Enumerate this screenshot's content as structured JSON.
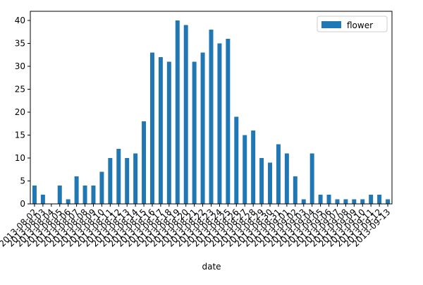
{
  "chart_data": {
    "type": "bar",
    "xlabel": "date",
    "categories": [
      "2013-08-02",
      "2013-08-03",
      "2013-08-04",
      "2013-08-05",
      "2013-08-06",
      "2013-08-07",
      "2013-08-08",
      "2013-08-09",
      "2013-08-10",
      "2013-08-11",
      "2013-08-12",
      "2013-08-13",
      "2013-08-14",
      "2013-08-15",
      "2013-08-16",
      "2013-08-17",
      "2013-08-18",
      "2013-08-19",
      "2013-08-20",
      "2013-08-21",
      "2013-08-22",
      "2013-08-23",
      "2013-08-24",
      "2013-08-25",
      "2013-08-26",
      "2013-08-27",
      "2013-08-28",
      "2013-08-29",
      "2013-08-30",
      "2013-08-31",
      "2013-09-01",
      "2013-09-02",
      "2013-09-03",
      "2013-09-04",
      "2013-09-05",
      "2013-09-06",
      "2013-09-07",
      "2013-09-08",
      "2013-09-09",
      "2013-09-10",
      "2013-09-11",
      "2013-09-12",
      "2013-09-13"
    ],
    "series": [
      {
        "name": "flower",
        "color": "#1f77b4",
        "values": [
          4,
          2,
          0,
          4,
          1,
          6,
          4,
          4,
          7,
          10,
          12,
          10,
          11,
          18,
          33,
          32,
          31,
          40,
          39,
          31,
          33,
          38,
          35,
          36,
          19,
          15,
          16,
          10,
          9,
          13,
          11,
          6,
          1,
          11,
          2,
          2,
          1,
          1,
          1,
          1,
          2,
          2,
          1
        ]
      }
    ],
    "ylim": [
      0,
      42
    ],
    "yticks": [
      0,
      5,
      10,
      15,
      20,
      25,
      30,
      35,
      40
    ],
    "legend": "upper right"
  }
}
